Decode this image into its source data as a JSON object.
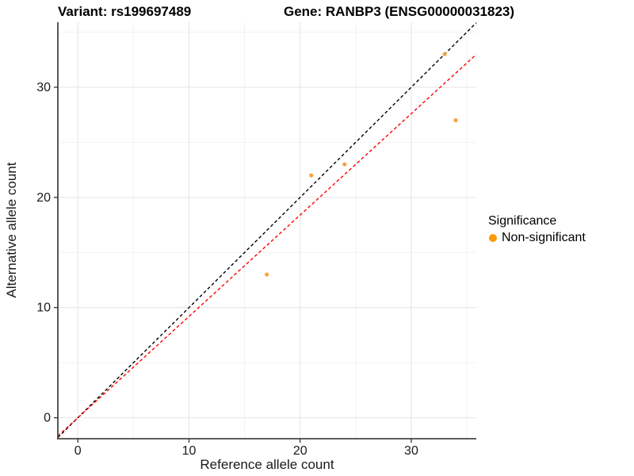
{
  "header": {
    "variant_title": "Variant: rs199697489",
    "gene_title": "Gene: RANBP3 (ENSG00000031823)"
  },
  "legend": {
    "title": "Significance",
    "items": [
      {
        "label": "Non-significant",
        "marker_color": "#FB9803"
      }
    ]
  },
  "chart_data": {
    "type": "scatter",
    "title_left": "Variant: rs199697489",
    "title_right": "Gene: RANBP3 (ENSG00000031823)",
    "xlabel": "Reference allele count",
    "ylabel": "Alternative allele count",
    "xlim": [
      -1.8,
      35.85
    ],
    "ylim": [
      -1.9,
      35.9
    ],
    "x_ticks": [
      0,
      10,
      20,
      30
    ],
    "y_ticks": [
      0,
      10,
      20,
      30
    ],
    "x_minor_ticks": [
      5,
      15,
      25,
      35
    ],
    "y_minor_ticks": [
      5,
      15,
      25,
      35
    ],
    "grid": true,
    "legend_position": "right",
    "legend_title": "Significance",
    "series": [
      {
        "name": "Non-significant",
        "color": "#F9A240",
        "marker": "circle",
        "points": [
          [
            17,
            13
          ],
          [
            21,
            22
          ],
          [
            24,
            23
          ],
          [
            33,
            33
          ],
          [
            34,
            27
          ]
        ]
      }
    ],
    "lines": [
      {
        "name": "identity-line",
        "slope": 1.0,
        "intercept": 0,
        "color": "#000000",
        "dash": "4 3"
      },
      {
        "name": "fit-line",
        "slope": 0.92,
        "intercept": 0,
        "color": "#FF0000",
        "dash": "4 3"
      }
    ],
    "colors": {
      "grid_major": "#E4E4E4",
      "grid_minor": "#F2F2F2",
      "axis_line": "#464646",
      "tick_mark": "#333333",
      "tick_text": "#1A1A1A"
    }
  }
}
